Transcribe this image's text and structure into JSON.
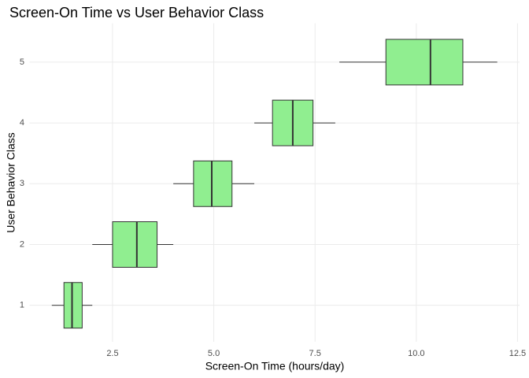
{
  "chart_data": {
    "type": "boxplot",
    "orientation": "horizontal",
    "title": "Screen-On Time vs User Behavior Class",
    "x_label": "Screen-On Time (hours/day)",
    "y_label": "User Behavior Class",
    "categories": [
      "1",
      "2",
      "3",
      "4",
      "5"
    ],
    "boxes": [
      {
        "min": 1.0,
        "q1": 1.3,
        "median": 1.5,
        "q3": 1.75,
        "max": 2.0
      },
      {
        "min": 2.0,
        "q1": 2.5,
        "median": 3.1,
        "q3": 3.6,
        "max": 4.0
      },
      {
        "min": 4.0,
        "q1": 4.5,
        "median": 4.95,
        "q3": 5.45,
        "max": 6.0
      },
      {
        "min": 6.0,
        "q1": 6.45,
        "median": 6.95,
        "q3": 7.45,
        "max": 8.0
      },
      {
        "min": 8.1,
        "q1": 9.25,
        "median": 10.35,
        "q3": 11.15,
        "max": 12.0
      }
    ],
    "color": "#90ee90",
    "xlim": [
      0.45,
      12.55
    ],
    "xticks": [
      2.5,
      {
        "value": 5,
        "label": "5.0"
      },
      7.5,
      {
        "value": 10,
        "label": "10.0"
      },
      12.5
    ],
    "grid": true
  }
}
